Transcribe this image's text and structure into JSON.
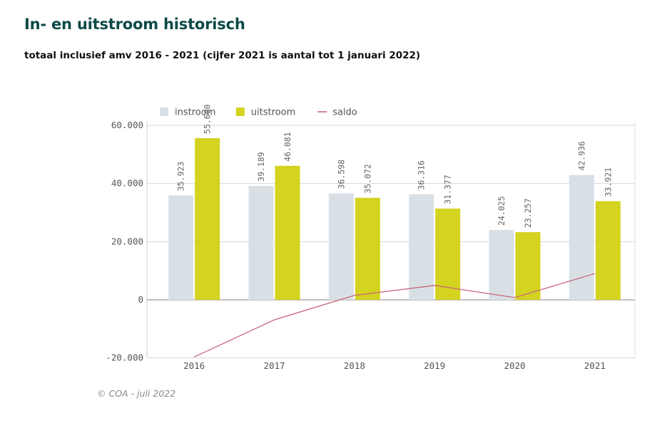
{
  "header": {
    "title": "In- en uitstroom historisch",
    "subtitle": "totaal inclusief amv 2016 - 2021 (cijfer 2021 is aantal tot 1 januari 2022)"
  },
  "footer": {
    "credit": "© COA - juli 2022"
  },
  "chart_data": {
    "type": "bar",
    "categories": [
      "2016",
      "2017",
      "2018",
      "2019",
      "2020",
      "2021"
    ],
    "series": [
      {
        "name": "instroom",
        "type": "bar",
        "color": "#d9e0e5",
        "values": [
          35923,
          39189,
          36598,
          36316,
          24025,
          42936
        ],
        "labels": [
          "35.923",
          "39.189",
          "36.598",
          "36.316",
          "24.025",
          "42.936"
        ]
      },
      {
        "name": "uitstroom",
        "type": "bar",
        "color": "#d4d320",
        "values": [
          55600,
          46081,
          35072,
          31377,
          23257,
          33921
        ],
        "labels": [
          "55.600",
          "46.081",
          "35.072",
          "31.377",
          "23.257",
          "33.921"
        ]
      },
      {
        "name": "saldo",
        "type": "line",
        "color": "#c8647a",
        "values": [
          -19677,
          -6892,
          1526,
          4939,
          768,
          9015
        ]
      }
    ],
    "yticks": [
      {
        "value": 60000,
        "label": "60.000"
      },
      {
        "value": 40000,
        "label": "40.000"
      },
      {
        "value": 20000,
        "label": "20.000"
      },
      {
        "value": 0,
        "label": "0"
      },
      {
        "value": -20000,
        "label": "-20.000"
      }
    ],
    "ylim": [
      -20000,
      60000
    ],
    "grid": true,
    "legend": "top-left"
  }
}
